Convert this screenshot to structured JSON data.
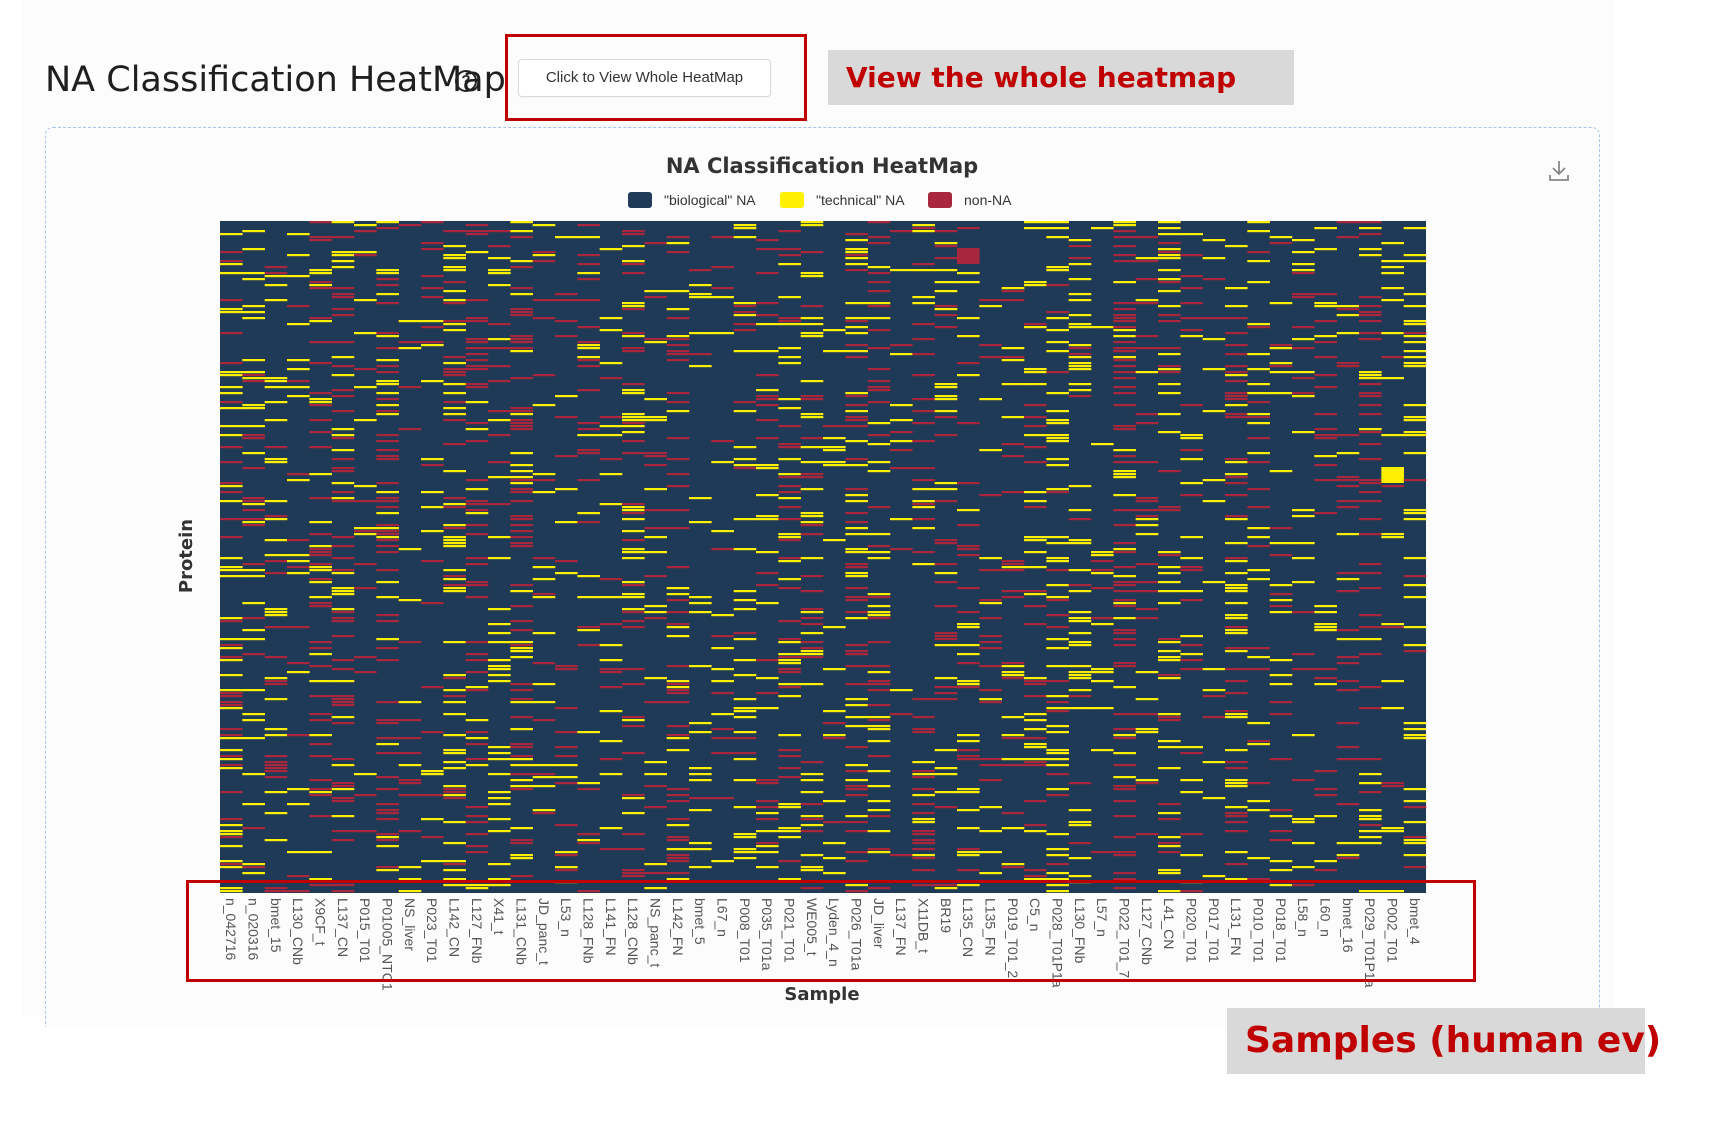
{
  "page": {
    "title": "NA Classification HeatMap",
    "view_button_label": "Click to View Whole HeatMap"
  },
  "annotations": {
    "view_label": "View the whole heatmap",
    "samples_label": "Samples (human ev)"
  },
  "icons": {
    "help": "question-circle-icon",
    "download": "download-icon"
  },
  "chart_data": {
    "type": "heatmap",
    "title": "NA Classification HeatMap",
    "xlabel": "Sample",
    "ylabel": "Protein",
    "legend": {
      "placement": "top-center",
      "entries": [
        {
          "name": "\"biological\" NA",
          "color": "#1e3a56"
        },
        {
          "name": "\"technical\" NA",
          "color": "#ffef00"
        },
        {
          "name": "non-NA",
          "color": "#a8273d"
        }
      ]
    },
    "categories": [
      "n_042716",
      "n_020316",
      "bmet_15",
      "L130_CNb",
      "X9CF_t",
      "L137_CN",
      "P015_T01",
      "P01005_NTC1",
      "NS_liver",
      "P023_T01",
      "L142_CN",
      "L127_FNb",
      "X41_t",
      "L131_CNb",
      "JD_panc_t",
      "L53_n",
      "L128_FNb",
      "L141_FN",
      "L128_CNb",
      "NS_panc_t",
      "L142_FN",
      "bmet_5",
      "L67_n",
      "P008_T01",
      "P035_T01a",
      "P021_T01",
      "WE005_t",
      "Lyden_4_n",
      "P026_T01a",
      "JD_liver",
      "L137_FN",
      "X11DB_t",
      "BR19",
      "L135_CN",
      "L135_FN",
      "P019_T01_2",
      "C5_n",
      "P028_T01P1a",
      "L130_FNb",
      "L57_n",
      "P022_T01_7",
      "L127_CNb",
      "L41_CN",
      "P020_T01",
      "P017_T01",
      "L131_FN",
      "P010_T01",
      "P018_T01",
      "L58_n",
      "L60_n",
      "bmet_16",
      "P029_T01P1a",
      "P002_T01",
      "bmet_4"
    ],
    "cell_values": [
      "biological NA",
      "technical NA",
      "non-NA"
    ],
    "note_rows": "individual protein rows are not labeled in the figure; majority of cells are biological NA"
  }
}
